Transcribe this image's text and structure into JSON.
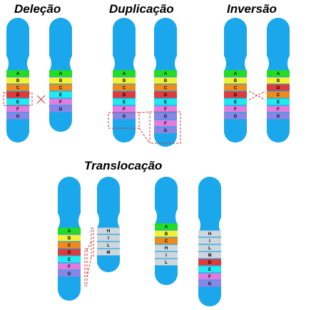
{
  "colors": {
    "chromosome": "#1aa7ec",
    "box": "#cc3333",
    "A": "#22dd22",
    "B": "#f5f030",
    "C": "#f08a1a",
    "D": "#e03a3a",
    "E": "#22e8f0",
    "F": "#e47ce0",
    "G": "#8a86e6",
    "H": "#cfd6dc",
    "I": "#cfd6dc",
    "L": "#cfd6dc",
    "M": "#cfd6dc",
    "N": "#cfd6dc"
  },
  "titles": {
    "delecao": "Deleção",
    "duplicacao": "Duplicação",
    "inversao": "Inversão",
    "translocacao": "Translocação"
  },
  "chromosomes": [
    {
      "id": "delecao-normal",
      "bands": [
        "A",
        "B",
        "C",
        "D",
        "E",
        "F",
        "G"
      ]
    },
    {
      "id": "delecao-mutant",
      "bands": [
        "A",
        "B",
        "C",
        "E",
        "F",
        "G"
      ]
    },
    {
      "id": "duplicacao-normal",
      "bands": [
        "A",
        "B",
        "C",
        "D",
        "E",
        "F",
        "G"
      ]
    },
    {
      "id": "duplicacao-mutant",
      "bands": [
        "A",
        "B",
        "C",
        "D",
        "E",
        "F",
        "G",
        "F",
        "G"
      ]
    },
    {
      "id": "inversao-normal",
      "bands": [
        "A",
        "B",
        "C",
        "D",
        "E",
        "F",
        "G"
      ]
    },
    {
      "id": "inversao-mutant",
      "bands": [
        "A",
        "B",
        "D",
        "C",
        "E",
        "F",
        "G"
      ]
    },
    {
      "id": "translocacao-normal-1",
      "bands": [
        "A",
        "B",
        "C",
        "D",
        "E",
        "F",
        "G"
      ]
    },
    {
      "id": "translocacao-normal-2",
      "bands": [
        "H",
        "I",
        "L",
        "M"
      ]
    },
    {
      "id": "translocacao-mutant-1",
      "bands": [
        "A",
        "B",
        "C",
        "H",
        "I",
        "L"
      ]
    },
    {
      "id": "translocacao-mutant-2",
      "bands": [
        "H",
        "I",
        "L",
        "M",
        "D",
        "E",
        "F",
        "G"
      ]
    }
  ]
}
